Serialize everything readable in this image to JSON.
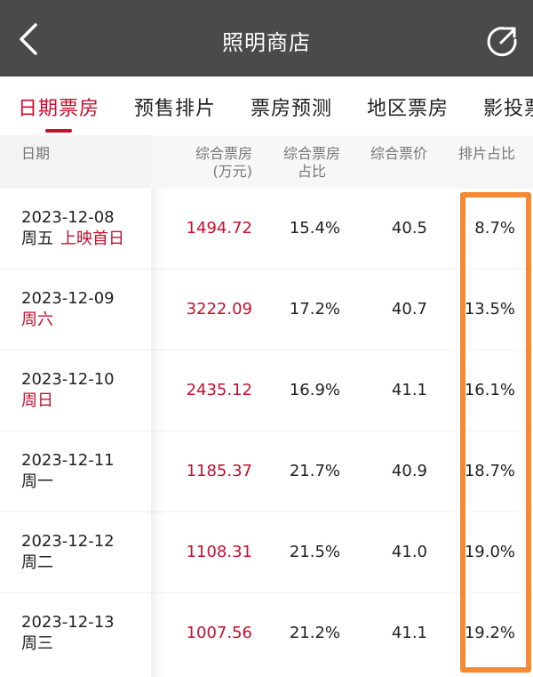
{
  "header": {
    "title": "照明商店",
    "back_icon": "chevron-left-icon",
    "share_icon": "share-icon"
  },
  "tabs": [
    {
      "label": "日期票房",
      "active": true
    },
    {
      "label": "预售排片",
      "active": false
    },
    {
      "label": "票房预测",
      "active": false
    },
    {
      "label": "地区票房",
      "active": false
    },
    {
      "label": "影投票",
      "active": false
    }
  ],
  "table": {
    "columns": {
      "date": "日期",
      "box_office": "综合票房",
      "box_office_unit": "(万元)",
      "box_share_1": "综合票房",
      "box_share_2": "占比",
      "avg_price": "综合票价",
      "schedule_share": "排片占比"
    },
    "rows": [
      {
        "date": "2023-12-08",
        "weekday": "周五",
        "tag": "上映首日",
        "weekday_red": false,
        "box_office": "1494.72",
        "box_share": "15.4%",
        "avg_price": "40.5",
        "schedule_share": "8.7%"
      },
      {
        "date": "2023-12-09",
        "weekday": "周六",
        "tag": "",
        "weekday_red": true,
        "box_office": "3222.09",
        "box_share": "17.2%",
        "avg_price": "40.7",
        "schedule_share": "13.5%"
      },
      {
        "date": "2023-12-10",
        "weekday": "周日",
        "tag": "",
        "weekday_red": true,
        "box_office": "2435.12",
        "box_share": "16.9%",
        "avg_price": "41.1",
        "schedule_share": "16.1%"
      },
      {
        "date": "2023-12-11",
        "weekday": "周一",
        "tag": "",
        "weekday_red": false,
        "box_office": "1185.37",
        "box_share": "21.7%",
        "avg_price": "40.9",
        "schedule_share": "18.7%"
      },
      {
        "date": "2023-12-12",
        "weekday": "周二",
        "tag": "",
        "weekday_red": false,
        "box_office": "1108.31",
        "box_share": "21.5%",
        "avg_price": "41.0",
        "schedule_share": "19.0%"
      },
      {
        "date": "2023-12-13",
        "weekday": "周三",
        "tag": "",
        "weekday_red": false,
        "box_office": "1007.56",
        "box_share": "21.2%",
        "avg_price": "41.1",
        "schedule_share": "19.2%"
      }
    ]
  },
  "colors": {
    "accent": "#c8102e",
    "titlebar": "#4a4a4a",
    "highlight": "#f58a32"
  }
}
